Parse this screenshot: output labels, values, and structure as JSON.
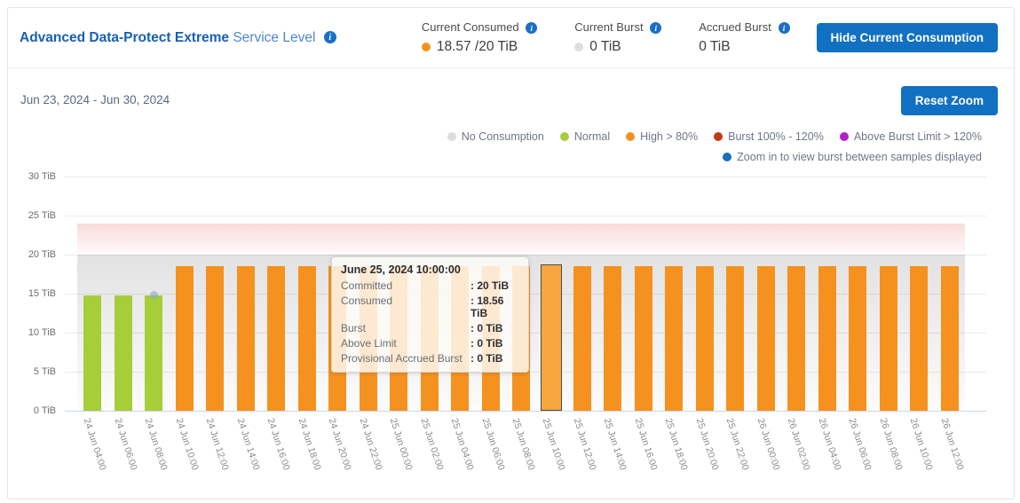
{
  "header": {
    "title_bold": "Advanced Data-Protect Extreme",
    "title_rest": "Service Level",
    "stats": [
      {
        "label": "Current Consumed",
        "value": "18.57 /20 TiB",
        "dot_color": "#F5921F"
      },
      {
        "label": "Current Burst",
        "value": "0 TiB",
        "dot_color": "#DEDEDE"
      },
      {
        "label": "Accrued Burst",
        "value": "0 TiB",
        "dot_color": null
      }
    ],
    "hide_button_label": "Hide Current Consumption"
  },
  "toolbar": {
    "date_range": "Jun 23, 2024 - Jun 30, 2024",
    "reset_zoom_label": "Reset Zoom"
  },
  "legend": {
    "items": [
      {
        "label": "No Consumption",
        "color": "#DCDCDC"
      },
      {
        "label": "Normal",
        "color": "#A6CE38"
      },
      {
        "label": "High > 80%",
        "color": "#F5921F"
      },
      {
        "label": "Burst 100% - 120%",
        "color": "#C43A13"
      },
      {
        "label": "Above Burst Limit > 120%",
        "color": "#B51FC8"
      }
    ],
    "note": {
      "label": "Zoom in to view burst between samples displayed",
      "color": "#1A6FC0"
    }
  },
  "tooltip": {
    "title": "June 25, 2024 10:00:00",
    "rows": [
      [
        "Committed",
        "20 TiB"
      ],
      [
        "Consumed",
        "18.56 TiB"
      ],
      [
        "Burst",
        "0 TiB"
      ],
      [
        "Above Limit",
        "0 TiB"
      ],
      [
        "Provisional Accrued Burst",
        "0 TiB"
      ]
    ]
  },
  "chart_data": {
    "type": "bar",
    "title": "",
    "xlabel": "",
    "ylabel": "TiB",
    "ylim": [
      0,
      30
    ],
    "yticks": [
      "0 TiB",
      "5 TiB",
      "10 TiB",
      "15 TiB",
      "20 TiB",
      "25 TiB",
      "30 TiB"
    ],
    "grid": true,
    "legend_position": "top-right",
    "committed_tib": 20,
    "burst_limit_tib": 24,
    "categories": [
      "24 Jun 04:00",
      "24 Jun 06:00",
      "24 Jun 08:00",
      "24 Jun 10:00",
      "24 Jun 12:00",
      "24 Jun 14:00",
      "24 Jun 16:00",
      "24 Jun 18:00",
      "24 Jun 20:00",
      "24 Jun 22:00",
      "25 Jun 00:00",
      "25 Jun 02:00",
      "25 Jun 04:00",
      "25 Jun 06:00",
      "25 Jun 08:00",
      "25 Jun 10:00",
      "25 Jun 12:00",
      "25 Jun 14:00",
      "25 Jun 16:00",
      "25 Jun 18:00",
      "25 Jun 20:00",
      "25 Jun 22:00",
      "26 Jun 00:00",
      "26 Jun 02:00",
      "26 Jun 04:00",
      "26 Jun 06:00",
      "26 Jun 08:00",
      "26 Jun 10:00",
      "26 Jun 12:00"
    ],
    "values": [
      14.8,
      14.8,
      14.8,
      18.5,
      18.5,
      18.5,
      18.5,
      18.5,
      18.5,
      18.5,
      18.5,
      18.5,
      18.5,
      18.5,
      18.5,
      18.56,
      18.5,
      18.5,
      18.5,
      18.5,
      18.5,
      18.5,
      18.5,
      18.5,
      18.5,
      18.5,
      18.5,
      18.5,
      18.5
    ],
    "statuses": [
      "normal",
      "normal",
      "normal",
      "high",
      "high",
      "high",
      "high",
      "high",
      "high",
      "high",
      "high",
      "high",
      "high",
      "high",
      "high",
      "high",
      "high",
      "high",
      "high",
      "high",
      "high",
      "high",
      "high",
      "high",
      "high",
      "high",
      "high",
      "high",
      "high"
    ],
    "status_colors": {
      "normal": "#A6CE38",
      "high": "#F5921F"
    },
    "highlighted_index": 15,
    "zoom_marker_index": 2
  }
}
